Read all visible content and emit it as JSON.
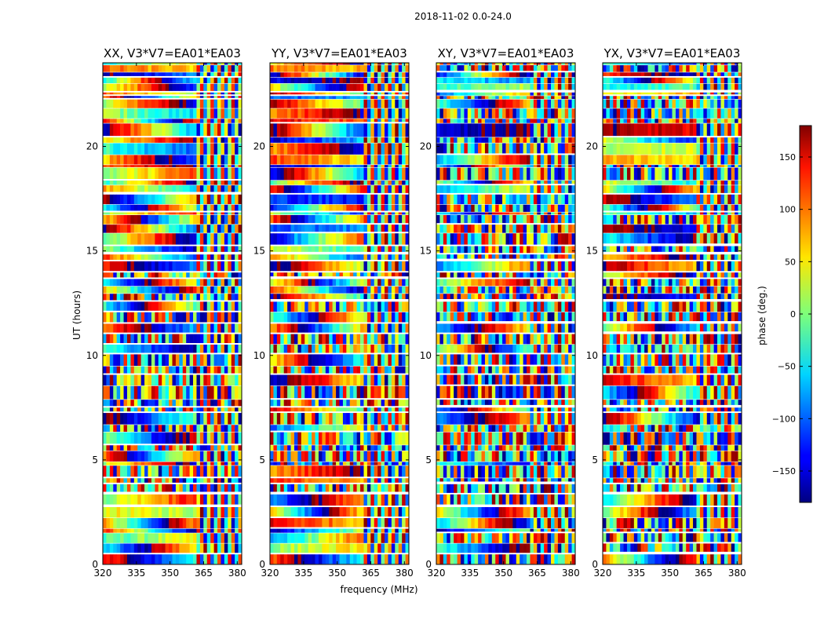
{
  "chart_data": {
    "type": "heatmap",
    "suptitle": "2018-11-02 0.0-24.0",
    "xlabel": "frequency (MHz)",
    "ylabel": "UT (hours)",
    "xlim": [
      320,
      382
    ],
    "ylim": [
      0,
      24
    ],
    "xticks": [
      320,
      335,
      350,
      365,
      380
    ],
    "yticks": [
      0,
      5,
      10,
      15,
      20
    ],
    "panels": [
      {
        "title": "XX, V3*V7=EA01*EA03"
      },
      {
        "title": "YY, V3*V7=EA01*EA03"
      },
      {
        "title": "XY, V3*V7=EA01*EA03"
      },
      {
        "title": "YX, V3*V7=EA01*EA03"
      }
    ],
    "colorbar": {
      "label": "phase (deg.)",
      "range": [
        -180,
        180
      ],
      "ticks": [
        150,
        100,
        50,
        0,
        -50,
        -100,
        -150
      ],
      "tick_labels": [
        "150",
        "100",
        "50",
        "0",
        "−50",
        "−100",
        "−150"
      ],
      "colormap": "jet"
    }
  }
}
